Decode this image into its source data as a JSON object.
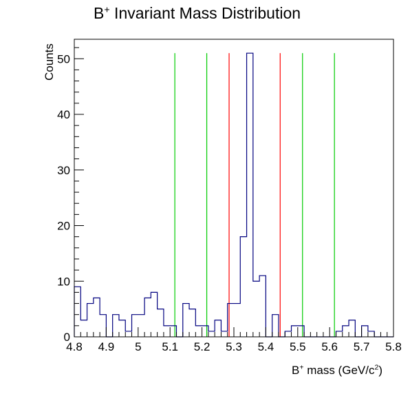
{
  "chart_data": {
    "type": "histogram",
    "title": {
      "pre": "B",
      "sup": "+",
      "post": " Invariant Mass Distribution"
    },
    "xlabel": {
      "pre": "B",
      "sup": "+",
      "mid": " mass (GeV/c",
      "sup2": "2",
      "post": ")"
    },
    "ylabel": "Counts",
    "xlim": [
      4.8,
      5.8
    ],
    "ylim": [
      0,
      53.5
    ],
    "x_ticks": [
      "4.8",
      "4.9",
      "5",
      "5.1",
      "5.2",
      "5.3",
      "5.4",
      "5.5",
      "5.6",
      "5.7",
      "5.8"
    ],
    "y_ticks": [
      "0",
      "10",
      "20",
      "30",
      "40",
      "50"
    ],
    "bin_width": 0.02,
    "bin_start": 4.8,
    "counts": [
      9,
      3,
      6,
      7,
      4,
      0,
      4,
      3,
      1,
      4,
      4,
      7,
      8,
      5,
      2,
      2,
      0,
      6,
      5,
      2,
      2,
      1,
      3,
      1,
      6,
      6,
      18,
      51,
      10,
      11,
      0,
      4,
      0,
      1,
      2,
      2,
      0,
      0,
      0,
      0,
      0,
      1,
      2,
      3,
      0,
      2,
      1,
      0,
      0,
      0
    ],
    "series_color": "#00007f",
    "vertical_lines": [
      {
        "x": 5.115,
        "color": "#00cc00"
      },
      {
        "x": 5.215,
        "color": "#00cc00"
      },
      {
        "x": 5.285,
        "color": "#ff0000"
      },
      {
        "x": 5.445,
        "color": "#ff0000"
      },
      {
        "x": 5.515,
        "color": "#00cc00"
      },
      {
        "x": 5.615,
        "color": "#00cc00"
      }
    ]
  }
}
